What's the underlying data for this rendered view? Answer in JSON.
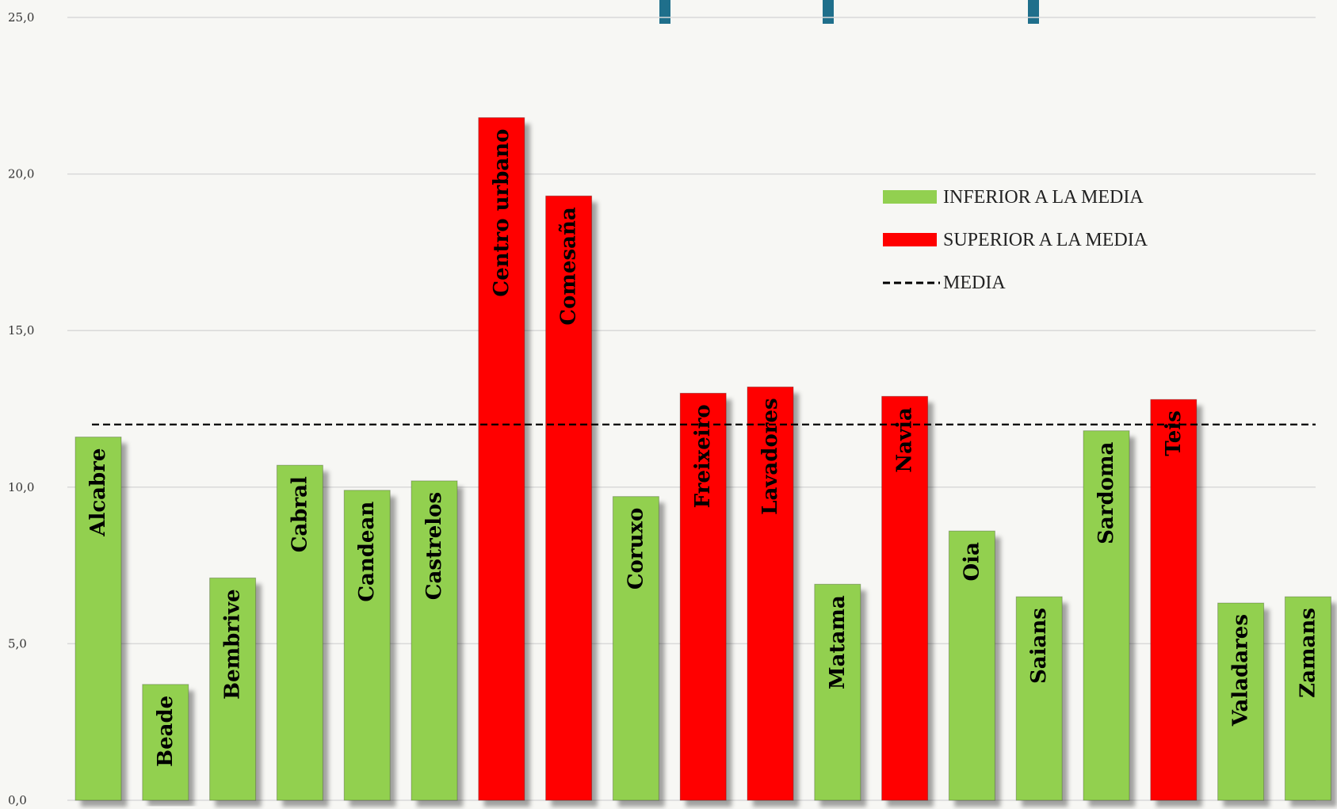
{
  "chart_data": {
    "type": "bar",
    "categories": [
      "Alcabre",
      "Beade",
      "Bembrive",
      "Cabral",
      "Candean",
      "Castrelos",
      "Centro urbano",
      "Comesaña",
      "Coruxo",
      "Freixeiro",
      "Lavadores",
      "Matama",
      "Navia",
      "Oia",
      "Saians",
      "Sardoma",
      "Teis",
      "Valadares",
      "Zamans"
    ],
    "values": [
      11.6,
      3.7,
      7.1,
      10.7,
      9.9,
      10.2,
      21.8,
      19.3,
      9.7,
      13.0,
      13.2,
      6.9,
      12.9,
      8.6,
      6.5,
      11.8,
      12.8,
      6.3,
      6.5
    ],
    "series_membership": [
      "inferior",
      "inferior",
      "inferior",
      "inferior",
      "inferior",
      "inferior",
      "superior",
      "superior",
      "inferior",
      "superior",
      "superior",
      "inferior",
      "superior",
      "inferior",
      "inferior",
      "inferior",
      "superior",
      "inferior",
      "inferior"
    ],
    "mean": 12.0,
    "ylim": [
      0,
      25
    ],
    "yticks": [
      "0,0",
      "5,0",
      "10,0",
      "15,0",
      "20,0",
      "25,0"
    ],
    "ytick_values": [
      0,
      5,
      10,
      15,
      20,
      25
    ],
    "grid": true,
    "legend_placement": "top-right",
    "legend": [
      {
        "key": "inferior",
        "label": "INFERIOR A LA  MEDIA",
        "color": "#92d050",
        "kind": "box"
      },
      {
        "key": "superior",
        "label": "SUPERIOR  A LA MEDIA",
        "color": "#ff0000",
        "kind": "box"
      },
      {
        "key": "media",
        "label": "MEDIA",
        "color": "#000000",
        "kind": "dash"
      }
    ],
    "colors": {
      "inferior": "#92d050",
      "superior": "#ff0000",
      "grid": "#d9d9d9",
      "mean": "#000000",
      "title_bars": "#1f6f8b"
    }
  }
}
